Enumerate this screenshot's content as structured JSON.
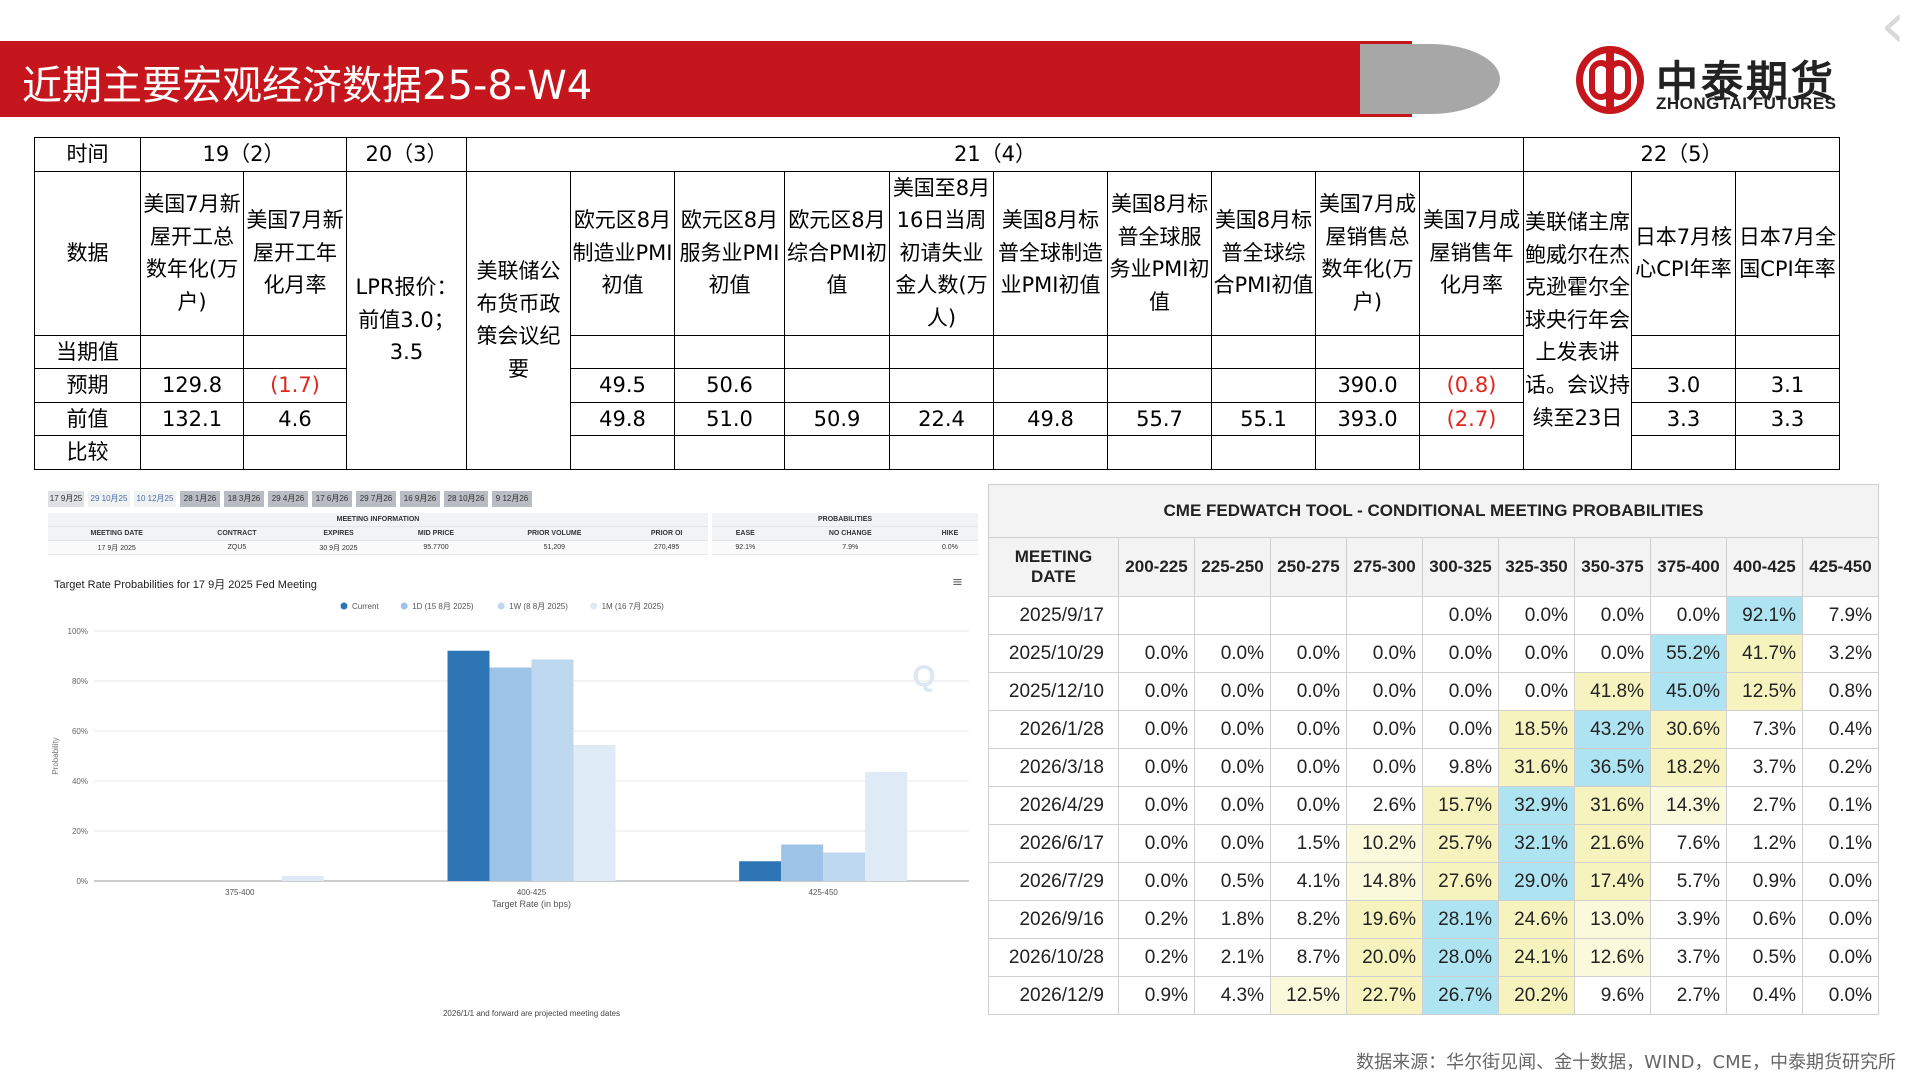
{
  "header": {
    "title": "近期主要宏观经济数据25-8-W4",
    "logo_cn": "中泰期货",
    "logo_en": "ZHONGTAI FUTURES",
    "brand_color": "#c4161c"
  },
  "macro_table": {
    "time_label": "时间",
    "data_label": "数据",
    "row_labels": [
      "当期值",
      "预期",
      "前值",
      "比较"
    ],
    "dates": [
      "19（2）",
      "20（3）",
      "21（4）",
      "22（5）"
    ],
    "columns": [
      {
        "label": "美国7月新屋开工总数年化(万户)",
        "current": "",
        "expected": "129.8",
        "previous": "132.1",
        "compare": ""
      },
      {
        "label": "美国7月新屋开工年化月率",
        "current": "",
        "expected": "(1.7)",
        "previous": "4.6",
        "compare": ""
      },
      {
        "label": "LPR报价：前值3.0；3.5"
      },
      {
        "label": "美联储公布货币政策会议纪要"
      },
      {
        "label": "欧元区8月制造业PMI初值",
        "current": "",
        "expected": "49.5",
        "previous": "49.8",
        "compare": ""
      },
      {
        "label": "欧元区8月服务业PMI初值",
        "current": "",
        "expected": "50.6",
        "previous": "51.0",
        "compare": ""
      },
      {
        "label": "欧元区8月综合PMI初值",
        "current": "",
        "expected": "",
        "previous": "50.9",
        "compare": ""
      },
      {
        "label": "美国至8月16日当周初请失业金人数(万人)",
        "current": "",
        "expected": "",
        "previous": "22.4",
        "compare": ""
      },
      {
        "label": "美国8月标普全球制造业PMI初值",
        "current": "",
        "expected": "",
        "previous": "49.8",
        "compare": ""
      },
      {
        "label": "美国8月标普全球服务业PMI初值",
        "current": "",
        "expected": "",
        "previous": "55.7",
        "compare": ""
      },
      {
        "label": "美国8月标普全球综合PMI初值",
        "current": "",
        "expected": "",
        "previous": "55.1",
        "compare": ""
      },
      {
        "label": "美国7月成屋销售总数年化(万户)",
        "current": "",
        "expected": "390.0",
        "previous": "393.0",
        "compare": ""
      },
      {
        "label": "美国7月成屋销售年化月率",
        "current": "",
        "expected": "(0.8)",
        "previous": "(2.7)",
        "compare": ""
      },
      {
        "label": "美联储主席鲍威尔在杰克逊霍尔全球央行年会上发表讲话。会议持续至23日"
      },
      {
        "label": "日本7月核心CPI年率",
        "current": "",
        "expected": "3.0",
        "previous": "3.3",
        "compare": ""
      },
      {
        "label": "日本7月全国CPI年率",
        "current": "",
        "expected": "3.1",
        "previous": "3.3",
        "compare": ""
      }
    ]
  },
  "fedwatch_panel": {
    "tabs": [
      "17 9月25",
      "29 10月25",
      "10 12月25",
      "28 1月26",
      "18 3月26",
      "29 4月26",
      "17 6月26",
      "29 7月26",
      "16 9月26",
      "28 10月26",
      "9 12月26"
    ],
    "meeting_info_title": "MEETING INFORMATION",
    "meeting_info_headers": [
      "MEETING DATE",
      "CONTRACT",
      "EXPIRES",
      "MID PRICE",
      "PRIOR VOLUME",
      "PRIOR OI"
    ],
    "meeting_info_values": [
      "17 9月 2025",
      "ZQU5",
      "30 9月 2025",
      "95.7700",
      "51,209",
      "270,495"
    ],
    "probabilities_title": "PROBABILITIES",
    "probabilities_headers": [
      "EASE",
      "NO CHANGE",
      "HIKE"
    ],
    "probabilities_values": [
      "92.1%",
      "7.9%",
      "0.0%"
    ],
    "chart_title": "Target Rate Probabilities for 17 9月 2025 Fed Meeting",
    "footnote": "2026/1/1 and forward are projected meeting dates",
    "watermark": "Q"
  },
  "chart_data": {
    "type": "bar",
    "categories": [
      "375-400",
      "400-425",
      "425-450"
    ],
    "series": [
      {
        "name": "Current",
        "values": [
          0,
          92.1,
          7.9
        ],
        "color": "#2e75b6"
      },
      {
        "name": "1D (15 8月 2025)",
        "values": [
          0,
          85.4,
          14.6
        ],
        "color": "#9dc3e6"
      },
      {
        "name": "1W (8 8月 2025)",
        "values": [
          0,
          88.6,
          11.4
        ],
        "color": "#bdd7ee"
      },
      {
        "name": "1M (16 7月 2025)",
        "values": [
          2.0,
          54.4,
          43.6
        ],
        "color": "#deebf7"
      }
    ],
    "xlabel": "Target Rate (in bps)",
    "ylabel": "Probability",
    "ylim": [
      0,
      100
    ],
    "yticks": [
      "0%",
      "20%",
      "40%",
      "60%",
      "80%",
      "100%"
    ],
    "legend": "top-center"
  },
  "fed_table": {
    "title": "CME FEDWATCH TOOL - CONDITIONAL MEETING PROBABILITIES",
    "headers": [
      "MEETING DATE",
      "200-225",
      "225-250",
      "250-275",
      "275-300",
      "300-325",
      "325-350",
      "350-375",
      "375-400",
      "400-425",
      "425-450"
    ],
    "rows": [
      {
        "date": "2025/9/17",
        "vals": [
          "",
          "",
          "",
          "",
          "0.0%",
          "0.0%",
          "0.0%",
          "0.0%",
          "92.1%",
          "7.9%"
        ]
      },
      {
        "date": "2025/10/29",
        "vals": [
          "0.0%",
          "0.0%",
          "0.0%",
          "0.0%",
          "0.0%",
          "0.0%",
          "0.0%",
          "55.2%",
          "41.7%",
          "3.2%"
        ]
      },
      {
        "date": "2025/12/10",
        "vals": [
          "0.0%",
          "0.0%",
          "0.0%",
          "0.0%",
          "0.0%",
          "0.0%",
          "41.8%",
          "45.0%",
          "12.5%",
          "0.8%"
        ]
      },
      {
        "date": "2026/1/28",
        "vals": [
          "0.0%",
          "0.0%",
          "0.0%",
          "0.0%",
          "0.0%",
          "18.5%",
          "43.2%",
          "30.6%",
          "7.3%",
          "0.4%"
        ]
      },
      {
        "date": "2026/3/18",
        "vals": [
          "0.0%",
          "0.0%",
          "0.0%",
          "0.0%",
          "9.8%",
          "31.6%",
          "36.5%",
          "18.2%",
          "3.7%",
          "0.2%"
        ]
      },
      {
        "date": "2026/4/29",
        "vals": [
          "0.0%",
          "0.0%",
          "0.0%",
          "2.6%",
          "15.7%",
          "32.9%",
          "31.6%",
          "14.3%",
          "2.7%",
          "0.1%"
        ]
      },
      {
        "date": "2026/6/17",
        "vals": [
          "0.0%",
          "0.0%",
          "1.5%",
          "10.2%",
          "25.7%",
          "32.1%",
          "21.6%",
          "7.6%",
          "1.2%",
          "0.1%"
        ]
      },
      {
        "date": "2026/7/29",
        "vals": [
          "0.0%",
          "0.5%",
          "4.1%",
          "14.8%",
          "27.6%",
          "29.0%",
          "17.4%",
          "5.7%",
          "0.9%",
          "0.0%"
        ]
      },
      {
        "date": "2026/9/16",
        "vals": [
          "0.2%",
          "1.8%",
          "8.2%",
          "19.6%",
          "28.1%",
          "24.6%",
          "13.0%",
          "3.9%",
          "0.6%",
          "0.0%"
        ]
      },
      {
        "date": "2026/10/28",
        "vals": [
          "0.2%",
          "2.1%",
          "8.7%",
          "20.0%",
          "28.0%",
          "24.1%",
          "12.6%",
          "3.7%",
          "0.5%",
          "0.0%"
        ]
      },
      {
        "date": "2026/12/9",
        "vals": [
          "0.9%",
          "4.3%",
          "12.5%",
          "22.7%",
          "26.7%",
          "20.2%",
          "9.6%",
          "2.7%",
          "0.4%",
          "0.0%"
        ]
      }
    ]
  },
  "footer": {
    "source": "数据来源：华尔街见闻、金十数据，WIND，CME，中泰期货研究所"
  }
}
